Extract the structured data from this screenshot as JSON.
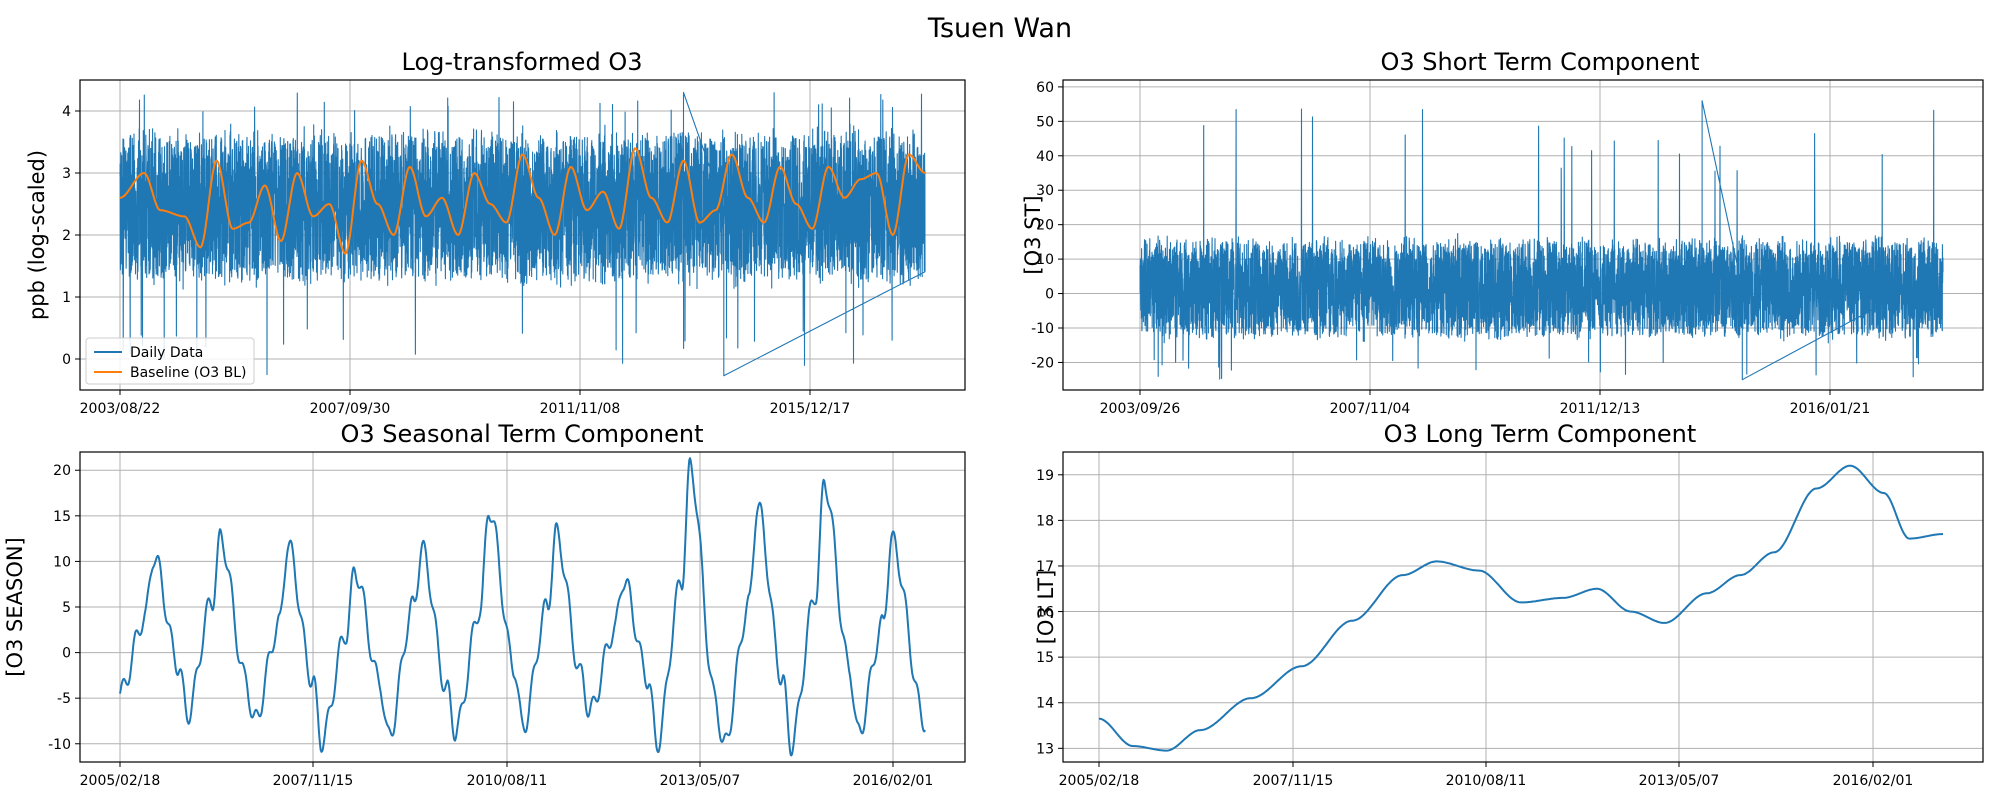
{
  "figure": {
    "suptitle": "Tsuen Wan"
  },
  "colors": {
    "primary": "#1f77b4",
    "secondary": "#ff7f0e",
    "grid": "#b0b0b0"
  },
  "chart_data": [
    {
      "type": "line",
      "title": "Log-transformed O3",
      "ylabel": "ppb (log-scaled)",
      "xlabel": "",
      "x_tick_labels": [
        "2003/08/22",
        "2007/09/30",
        "2011/11/08",
        "2015/12/17"
      ],
      "y_ticks": [
        0,
        1,
        2,
        3,
        4
      ],
      "ylim": [
        -0.5,
        4.5
      ],
      "grid": true,
      "legend": {
        "placement": "lower-left",
        "entries": [
          "Daily Data",
          "Baseline (O3 BL)"
        ]
      },
      "series": [
        {
          "name": "Daily Data",
          "color": "#1f77b4",
          "kind": "noisy",
          "approx_range": [
            -0.27,
            4.3
          ],
          "typical_range": [
            1.3,
            3.6
          ],
          "points_shown": 5700
        },
        {
          "name": "Baseline (O3 BL)",
          "color": "#ff7f0e",
          "x_fraction": [
            0.0,
            0.03,
            0.05,
            0.08,
            0.1,
            0.12,
            0.14,
            0.16,
            0.18,
            0.2,
            0.22,
            0.24,
            0.26,
            0.28,
            0.3,
            0.32,
            0.34,
            0.36,
            0.38,
            0.4,
            0.42,
            0.44,
            0.46,
            0.48,
            0.5,
            0.52,
            0.54,
            0.56,
            0.58,
            0.6,
            0.62,
            0.64,
            0.66,
            0.68,
            0.7,
            0.72,
            0.74,
            0.76,
            0.78,
            0.8,
            0.82,
            0.84,
            0.86,
            0.88,
            0.9,
            0.92,
            0.94,
            0.96,
            0.98,
            1.0
          ],
          "values": [
            2.6,
            3.0,
            2.4,
            2.3,
            1.8,
            3.2,
            2.1,
            2.2,
            2.8,
            1.9,
            3.0,
            2.3,
            2.5,
            1.7,
            3.2,
            2.5,
            2.0,
            3.1,
            2.3,
            2.6,
            2.0,
            3.0,
            2.5,
            2.2,
            3.3,
            2.6,
            2.0,
            3.1,
            2.4,
            2.7,
            2.1,
            3.4,
            2.6,
            2.2,
            3.2,
            2.2,
            2.4,
            3.3,
            2.6,
            2.2,
            3.1,
            2.5,
            2.1,
            3.1,
            2.6,
            2.9,
            3.0,
            2.0,
            3.3,
            3.0
          ]
        }
      ]
    },
    {
      "type": "line",
      "title": "O3 Short Term Component",
      "ylabel": "[O3 ST]",
      "xlabel": "",
      "x_tick_labels": [
        "2003/09/26",
        "2007/11/04",
        "2011/12/13",
        "2016/01/21"
      ],
      "y_ticks": [
        -20,
        -10,
        0,
        10,
        20,
        30,
        40,
        50,
        60
      ],
      "ylim": [
        -28,
        62
      ],
      "grid": true,
      "series": [
        {
          "name": "",
          "color": "#1f77b4",
          "kind": "noisy",
          "approx_range": [
            -25,
            56
          ],
          "typical_range": [
            -12,
            15
          ],
          "points_shown": 5600
        }
      ]
    },
    {
      "type": "line",
      "title": "O3 Seasonal Term Component",
      "ylabel": "[O3 SEASON]",
      "xlabel": "",
      "x_tick_labels": [
        "2005/02/18",
        "2007/11/15",
        "2010/08/11",
        "2013/05/07",
        "2016/02/01"
      ],
      "y_ticks": [
        -10,
        -5,
        0,
        5,
        10,
        15,
        20
      ],
      "ylim": [
        -12,
        22
      ],
      "grid": true,
      "series": [
        {
          "name": "",
          "color": "#1f77b4",
          "kind": "oscillating",
          "approx_range": [
            -10,
            20.3
          ],
          "peaks": [
            10.6,
            12.5,
            11.8,
            9.0,
            11.3,
            15.8,
            13.0,
            8.0,
            20.3,
            16.1,
            18.7,
            12.3
          ],
          "troughs": [
            -6.8,
            -7.6,
            -9.7,
            -9.3,
            -8.6,
            -8.2,
            -6.5,
            -10.0,
            -10.3,
            -10.1,
            -8.9
          ]
        }
      ]
    },
    {
      "type": "line",
      "title": "O3 Long Term Component",
      "ylabel": "[O3 LT]",
      "xlabel": "",
      "x_tick_labels": [
        "2005/02/18",
        "2007/11/15",
        "2010/08/11",
        "2013/05/07",
        "2016/02/01"
      ],
      "y_ticks": [
        13,
        14,
        15,
        16,
        17,
        18,
        19
      ],
      "ylim": [
        12.7,
        19.5
      ],
      "grid": true,
      "series": [
        {
          "name": "",
          "color": "#1f77b4",
          "x_fraction": [
            0.0,
            0.04,
            0.08,
            0.12,
            0.18,
            0.24,
            0.3,
            0.36,
            0.4,
            0.45,
            0.5,
            0.55,
            0.59,
            0.63,
            0.67,
            0.72,
            0.76,
            0.8,
            0.85,
            0.89,
            0.93,
            0.96,
            1.0
          ],
          "values": [
            13.65,
            13.05,
            12.95,
            13.4,
            14.1,
            14.8,
            15.8,
            16.8,
            17.1,
            16.9,
            16.2,
            16.3,
            16.5,
            16.0,
            15.75,
            16.4,
            16.8,
            17.3,
            18.7,
            19.2,
            18.6,
            17.6,
            17.7
          ]
        }
      ]
    }
  ]
}
